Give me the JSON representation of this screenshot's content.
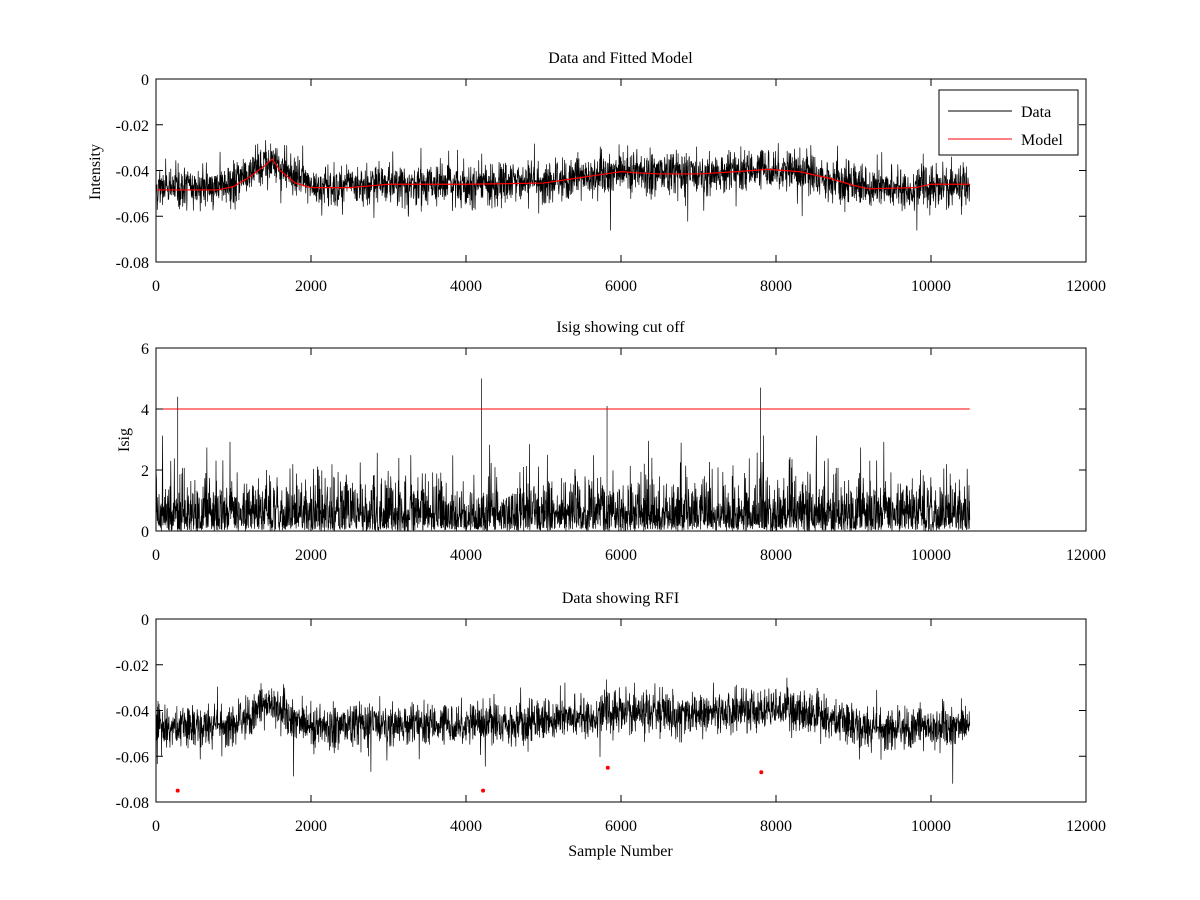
{
  "chart_data": [
    {
      "type": "line",
      "title": "Data and Fitted Model",
      "xlabel": "",
      "ylabel": "Intensity",
      "xlim": [
        0,
        12000
      ],
      "ylim": [
        -0.08,
        0
      ],
      "xticks": [
        "0",
        "2000",
        "4000",
        "6000",
        "8000",
        "10000",
        "12000"
      ],
      "yticks": [
        "0",
        "-0.02",
        "-0.04",
        "-0.06",
        "-0.08"
      ],
      "legend": {
        "position": "top-right",
        "entries": [
          "Data",
          "Model"
        ]
      },
      "series": [
        {
          "name": "Data",
          "color": "#000000",
          "x_range": [
            0,
            10500
          ],
          "baseline": [
            [
              0,
              -0.048
            ],
            [
              1000,
              -0.046
            ],
            [
              1300,
              -0.04
            ],
            [
              1500,
              -0.036
            ],
            [
              1700,
              -0.042
            ],
            [
              2000,
              -0.047
            ],
            [
              3000,
              -0.046
            ],
            [
              4000,
              -0.046
            ],
            [
              5000,
              -0.045
            ],
            [
              6000,
              -0.04
            ],
            [
              7000,
              -0.042
            ],
            [
              7900,
              -0.039
            ],
            [
              8500,
              -0.042
            ],
            [
              9200,
              -0.048
            ],
            [
              10000,
              -0.047
            ],
            [
              10500,
              -0.046
            ]
          ],
          "noise_sd": 0.0045
        },
        {
          "name": "Model",
          "color": "#ff0000",
          "x": [
            0,
            800,
            1000,
            1200,
            1400,
            1500,
            1600,
            1800,
            2000,
            2500,
            3000,
            4000,
            5000,
            5500,
            5800,
            6000,
            6200,
            6500,
            7000,
            7500,
            7900,
            8300,
            8700,
            9000,
            9200,
            9800,
            10000,
            10500
          ],
          "y": [
            -0.0485,
            -0.0485,
            -0.047,
            -0.043,
            -0.038,
            -0.035,
            -0.04,
            -0.0455,
            -0.0475,
            -0.0475,
            -0.046,
            -0.046,
            -0.0455,
            -0.043,
            -0.0415,
            -0.0405,
            -0.041,
            -0.0415,
            -0.0415,
            -0.0405,
            -0.0395,
            -0.0405,
            -0.0435,
            -0.0465,
            -0.048,
            -0.0475,
            -0.046,
            -0.046
          ]
        }
      ]
    },
    {
      "type": "line",
      "title": "Isig showing cut off",
      "xlabel": "",
      "ylabel": "Isig",
      "xlim": [
        0,
        12000
      ],
      "ylim": [
        0,
        6
      ],
      "xticks": [
        "0",
        "2000",
        "4000",
        "6000",
        "8000",
        "10000",
        "12000"
      ],
      "yticks": [
        "0",
        "2",
        "4",
        "6"
      ],
      "series": [
        {
          "name": "",
          "color": "#000000",
          "x_range": [
            0,
            10500
          ],
          "typical_max": 2.2
        },
        {
          "name": "",
          "color": "#ff0000",
          "x": [
            0,
            10500
          ],
          "y": [
            4,
            4
          ]
        }
      ],
      "spikes": [
        [
          280,
          4.4
        ],
        [
          4200,
          5.0
        ],
        [
          5820,
          4.1
        ],
        [
          7800,
          4.7
        ]
      ]
    },
    {
      "type": "line",
      "title": "Data showing RFI",
      "xlabel": "Sample Number",
      "ylabel": "",
      "xlim": [
        0,
        12000
      ],
      "ylim": [
        -0.08,
        0
      ],
      "xticks": [
        "0",
        "2000",
        "4000",
        "6000",
        "8000",
        "10000",
        "12000"
      ],
      "yticks": [
        "0",
        "-0.02",
        "-0.04",
        "-0.06",
        "-0.08"
      ],
      "series": [
        {
          "name": "",
          "color": "#000000",
          "x_range": [
            0,
            10500
          ]
        },
        {
          "name": "",
          "color": "#ff0000",
          "marker": "dot",
          "x": [
            280,
            4220,
            5830,
            7810
          ],
          "y": [
            -0.075,
            -0.075,
            -0.065,
            -0.067
          ]
        }
      ]
    }
  ]
}
